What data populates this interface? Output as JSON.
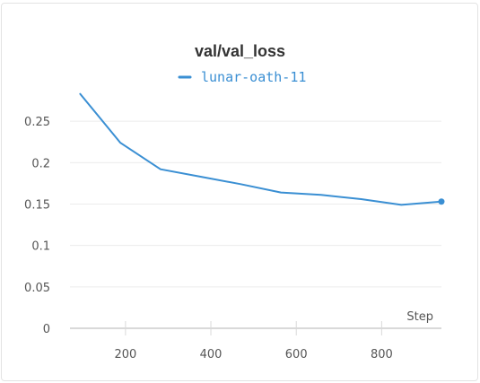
{
  "chart_data": {
    "type": "line",
    "title": "val/val_loss",
    "xlabel": "Step",
    "ylabel": "",
    "xlim": [
      70,
      940
    ],
    "ylim": [
      0,
      0.3
    ],
    "xticks": [
      200,
      400,
      600,
      800
    ],
    "xtick_labels": [
      "200",
      "400",
      "600",
      "800"
    ],
    "yticks": [
      0,
      0.05,
      0.1,
      0.15,
      0.2,
      0.25
    ],
    "ytick_labels": [
      "0",
      "0.05",
      "0.1",
      "0.15",
      "0.2",
      "0.25"
    ],
    "grid": true,
    "legend_position": "top-center",
    "series": [
      {
        "name": "lunar-oath-11",
        "color": "#3a8fd3",
        "x": [
          94,
          188,
          282,
          376,
          470,
          564,
          658,
          752,
          846,
          940
        ],
        "y": [
          0.283,
          0.224,
          0.192,
          0.183,
          0.174,
          0.164,
          0.161,
          0.156,
          0.149,
          0.153
        ]
      }
    ]
  }
}
